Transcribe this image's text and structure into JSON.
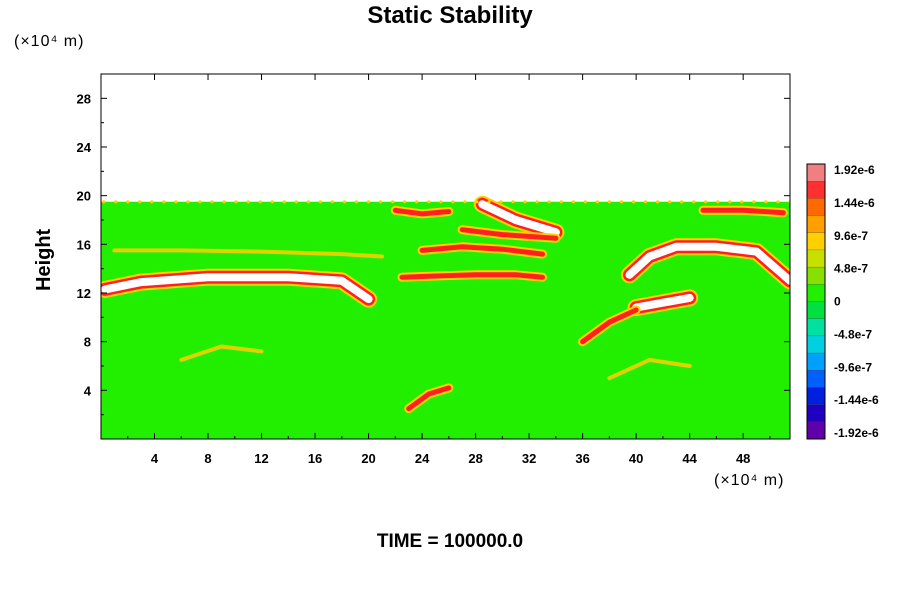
{
  "chart_data": {
    "type": "heatmap",
    "title": "Static Stability",
    "ylabel": "Height",
    "x_unit_label": "(×10⁴ m)",
    "y_unit_label": "(×10⁴ m)",
    "footer": "TIME = 100000.0",
    "xlim": [
      0,
      51.5
    ],
    "ylim": [
      0,
      30
    ],
    "x_ticks": [
      4,
      8,
      12,
      16,
      20,
      24,
      28,
      32,
      36,
      40,
      44,
      48
    ],
    "y_ticks": [
      4,
      8,
      12,
      16,
      20,
      24,
      28
    ],
    "colorbar": {
      "labels": [
        "1.92e-6",
        "1.44e-6",
        "9.6e-7",
        "4.8e-7",
        "0",
        "-4.8e-7",
        "-9.6e-7",
        "-1.44e-6",
        "-1.92e-6"
      ],
      "values": [
        1.92e-06,
        1.44e-06,
        9.6e-07,
        4.8e-07,
        0,
        -4.8e-07,
        -9.6e-07,
        -1.44e-06,
        -1.92e-06
      ],
      "colors": [
        "#f08080",
        "#ff3030",
        "#ff6a00",
        "#ffa000",
        "#ffd000",
        "#c8e000",
        "#88e000",
        "#22ee00",
        "#00e040",
        "#00e0a0",
        "#00d0e0",
        "#00a0ff",
        "#0060ff",
        "#0020e0",
        "#2000c0",
        "#6000a8"
      ]
    },
    "field": {
      "data_top_height": 19.5,
      "background_value": 0,
      "colors": {
        "background": "#22ee00",
        "positive": "#ffd000",
        "strong": "#ff2020",
        "saturated": "#ffffff"
      },
      "features": [
        {
          "kind": "band",
          "value": 1.92e-06,
          "points": [
            [
              0.3,
              12.3
            ],
            [
              3,
              12.9
            ],
            [
              8,
              13.3
            ],
            [
              14,
              13.3
            ],
            [
              18,
              13.0
            ],
            [
              20,
              11.5
            ]
          ]
        },
        {
          "kind": "band",
          "value": 1.92e-06,
          "points": [
            [
              40,
              10.8
            ],
            [
              42,
              11.2
            ],
            [
              44,
              11.6
            ]
          ]
        },
        {
          "kind": "band",
          "value": 1.92e-06,
          "points": [
            [
              39.5,
              13.5
            ],
            [
              41,
              15
            ],
            [
              43,
              15.8
            ],
            [
              46,
              15.8
            ],
            [
              49,
              15.4
            ],
            [
              51.5,
              13
            ]
          ]
        },
        {
          "kind": "band",
          "value": 1.92e-06,
          "points": [
            [
              28.5,
              19.3
            ],
            [
              31,
              18
            ],
            [
              34,
              17
            ]
          ]
        },
        {
          "kind": "band",
          "value": 1.6e-06,
          "points": [
            [
              22.5,
              13.3
            ],
            [
              25,
              13.4
            ],
            [
              28,
              13.5
            ],
            [
              31,
              13.5
            ],
            [
              33,
              13.3
            ]
          ]
        },
        {
          "kind": "band",
          "value": 1.6e-06,
          "points": [
            [
              24,
              15.5
            ],
            [
              27,
              15.8
            ],
            [
              30,
              15.6
            ],
            [
              33,
              15.2
            ]
          ]
        },
        {
          "kind": "band",
          "value": 1.2e-06,
          "points": [
            [
              27,
              17.2
            ],
            [
              30,
              16.8
            ],
            [
              34,
              16.5
            ]
          ]
        },
        {
          "kind": "band",
          "value": 1.2e-06,
          "points": [
            [
              23,
              2.5
            ],
            [
              24.5,
              3.7
            ],
            [
              26,
              4.2
            ]
          ]
        },
        {
          "kind": "band",
          "value": 1.2e-06,
          "points": [
            [
              22,
              18.8
            ],
            [
              24,
              18.5
            ],
            [
              26,
              18.7
            ]
          ]
        },
        {
          "kind": "band",
          "value": 1.2e-06,
          "points": [
            [
              36,
              8
            ],
            [
              38,
              9.6
            ],
            [
              40,
              10.6
            ]
          ]
        },
        {
          "kind": "band",
          "value": 1.2e-06,
          "points": [
            [
              45,
              18.8
            ],
            [
              48,
              18.8
            ],
            [
              51,
              18.6
            ]
          ]
        },
        {
          "kind": "band",
          "value": 6e-07,
          "points": [
            [
              1,
              15.5
            ],
            [
              6,
              15.5
            ],
            [
              12,
              15.4
            ],
            [
              18,
              15.2
            ],
            [
              21,
              15
            ]
          ]
        },
        {
          "kind": "band",
          "value": 6e-07,
          "points": [
            [
              6,
              6.5
            ],
            [
              9,
              7.6
            ],
            [
              12,
              7.2
            ]
          ]
        },
        {
          "kind": "band",
          "value": 6e-07,
          "points": [
            [
              38,
              5
            ],
            [
              41,
              6.5
            ],
            [
              44,
              6
            ]
          ]
        }
      ]
    }
  }
}
